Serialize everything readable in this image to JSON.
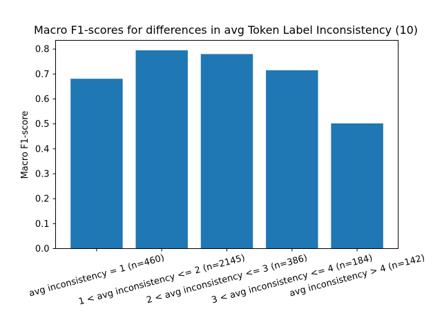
{
  "chart_data": {
    "type": "bar",
    "title": "Macro F1-scores for differences in avg Token Label Inconsistency (10)",
    "xlabel": "",
    "ylabel": "Macro F1-score",
    "categories": [
      "avg inconsistency = 1 (n=460)",
      "1 < avg inconsistency <= 2 (n=2145)",
      "2 < avg inconsistency <= 3 (n=386)",
      "3 < avg inconsistency <= 4 (n=184)",
      "avg inconsistency > 4 (n=142)"
    ],
    "values": [
      0.681,
      0.795,
      0.78,
      0.715,
      0.502
    ],
    "ylim": [
      0,
      0.835
    ],
    "yticks": [
      0.0,
      0.1,
      0.2,
      0.3,
      0.4,
      0.5,
      0.6,
      0.7,
      0.8
    ],
    "ytick_labels": [
      "0.0",
      "0.1",
      "0.2",
      "0.3",
      "0.4",
      "0.5",
      "0.6",
      "0.7",
      "0.8"
    ],
    "grid": false,
    "legend": "none",
    "bar_color": "#1f77b4",
    "tick_label_rotation_deg": -15
  }
}
